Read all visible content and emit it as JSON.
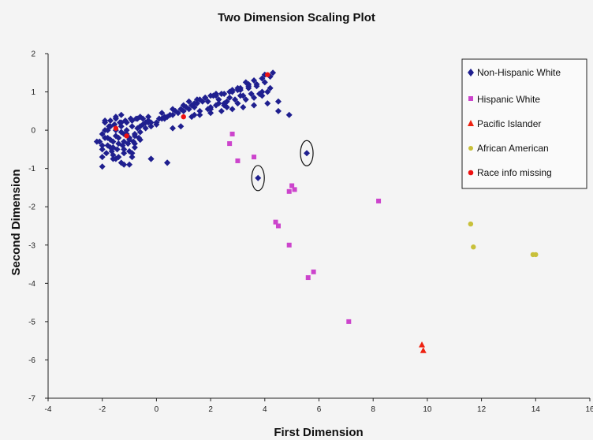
{
  "chart_data": {
    "type": "scatter",
    "title": "Two Dimension Scaling Plot",
    "xlabel": "First Dimension",
    "ylabel": "Second Dimension",
    "xlim": [
      -4,
      16
    ],
    "ylim": [
      -7,
      2
    ],
    "x_ticks": [
      "-4",
      "-2",
      "0",
      "2",
      "4",
      "6",
      "8",
      "10",
      "12",
      "14",
      "16"
    ],
    "y_ticks": [
      "2",
      "1",
      "0",
      "-1",
      "-2",
      "-3",
      "-4",
      "-5",
      "-6",
      "-7"
    ],
    "grid": false,
    "legend_position": "top-right",
    "circled_points": [
      [
        3.75,
        -1.25
      ],
      [
        5.55,
        -0.6
      ]
    ],
    "series": [
      {
        "name": "Non-Hispanic White",
        "marker": "diamond",
        "color": "#1f1f8f",
        "x": [
          -2.1,
          -2.0,
          -1.9,
          -1.8,
          -1.7,
          -1.6,
          -1.5,
          -1.4,
          -1.3,
          -1.2,
          -1.1,
          -1.0,
          -0.9,
          -0.8,
          -0.7,
          -0.6,
          -0.5,
          -0.4,
          -0.3,
          -0.2,
          -2.0,
          -1.8,
          -1.6,
          -1.4,
          -1.2,
          -1.0,
          -0.8,
          -0.6,
          -0.4,
          -0.2,
          0.0,
          -1.9,
          -1.7,
          -1.5,
          -1.3,
          -1.1,
          -0.9,
          -0.7,
          -0.5,
          -0.3,
          -1.85,
          -1.65,
          -1.45,
          -1.25,
          -1.05,
          -0.85,
          -0.65,
          -1.75,
          -1.55,
          -1.35,
          -1.15,
          -0.95,
          -0.75,
          -1.9,
          -1.7,
          -1.5,
          -1.3,
          -1.1,
          -2.0,
          -1.6,
          -1.2,
          -0.8,
          -1.4,
          -1.0,
          -0.6,
          -1.6,
          -1.2,
          -0.8,
          -1.3,
          -0.9,
          -2.2,
          -2.0,
          -1.0,
          -1.8,
          -1.5,
          -0.6,
          -1.9,
          -1.3,
          -0.2,
          0.4,
          -0.3,
          0.0,
          0.2,
          0.4,
          0.6,
          0.8,
          1.0,
          1.2,
          1.4,
          0.1,
          0.3,
          0.5,
          0.7,
          0.9,
          1.1,
          1.3,
          1.5,
          1.7,
          0.2,
          0.6,
          1.0,
          1.4,
          1.6,
          1.8,
          2.0,
          2.2,
          1.2,
          1.5,
          1.8,
          2.1,
          2.4,
          2.7,
          3.0,
          2.3,
          2.6,
          2.9,
          3.2,
          3.5,
          2.0,
          2.5,
          3.0,
          3.3,
          3.6,
          3.9,
          2.8,
          3.1,
          3.4,
          3.7,
          4.0,
          2.2,
          2.5,
          2.8,
          3.1,
          3.4,
          3.7,
          1.9,
          2.3,
          2.7,
          3.1,
          3.5,
          3.9,
          4.2,
          1.6,
          1.9,
          2.2,
          2.5,
          1.3,
          1.6,
          2.0,
          2.4,
          2.8,
          3.2,
          3.6,
          4.1,
          4.5,
          3.3,
          3.6,
          3.9,
          4.2,
          4.0,
          4.3,
          3.8,
          4.1,
          3.0,
          3.4,
          2.6,
          2.0,
          1.4,
          0.9,
          0.6,
          0.3,
          4.9,
          4.5,
          -0.2,
          0.4,
          -1.2,
          -1.5,
          -0.9,
          -1.7,
          -2.0
        ],
        "y": [
          -0.3,
          -0.1,
          0.0,
          -0.2,
          0.1,
          -0.3,
          0.0,
          -0.2,
          0.1,
          -0.1,
          0.0,
          -0.2,
          0.1,
          -0.1,
          0.05,
          0.1,
          0.15,
          0.2,
          0.25,
          0.2,
          -0.5,
          -0.4,
          -0.45,
          -0.35,
          -0.3,
          -0.25,
          -0.15,
          -0.05,
          0.05,
          0.1,
          0.15,
          0.2,
          0.25,
          0.3,
          0.2,
          0.2,
          0.25,
          0.3,
          0.3,
          0.35,
          -0.6,
          -0.55,
          -0.5,
          -0.4,
          -0.35,
          -0.3,
          -0.2,
          0.1,
          0.15,
          0.2,
          0.25,
          0.3,
          0.3,
          -0.2,
          -0.25,
          -0.15,
          -0.05,
          -0.1,
          -0.4,
          -0.65,
          -0.5,
          -0.35,
          -0.7,
          -0.55,
          -0.25,
          -0.75,
          -0.6,
          -0.45,
          -0.85,
          -0.7,
          -0.3,
          -0.95,
          -0.9,
          0.0,
          0.35,
          0.35,
          0.25,
          0.4,
          -0.75,
          -0.85,
          0.2,
          0.2,
          0.3,
          0.35,
          0.4,
          0.45,
          0.5,
          0.55,
          0.6,
          0.3,
          0.35,
          0.4,
          0.5,
          0.55,
          0.6,
          0.65,
          0.7,
          0.75,
          0.45,
          0.55,
          0.65,
          0.7,
          0.8,
          0.85,
          0.9,
          0.95,
          0.75,
          0.8,
          0.85,
          0.9,
          0.95,
          1.0,
          1.05,
          0.7,
          0.75,
          0.8,
          0.9,
          0.95,
          0.6,
          0.65,
          0.7,
          0.8,
          0.85,
          0.9,
          1.05,
          1.1,
          1.15,
          1.2,
          1.25,
          0.9,
          0.95,
          1.0,
          1.05,
          1.1,
          1.15,
          0.75,
          0.8,
          0.85,
          0.9,
          0.95,
          1.0,
          1.1,
          0.5,
          0.55,
          0.65,
          0.7,
          0.35,
          0.4,
          0.45,
          0.5,
          0.55,
          0.6,
          0.65,
          0.7,
          0.75,
          1.25,
          1.3,
          1.35,
          1.4,
          1.45,
          1.5,
          0.95,
          1.0,
          1.1,
          1.2,
          0.6,
          0.55,
          0.4,
          0.1,
          0.05,
          0.3,
          0.4,
          0.5,
          -0.75,
          -0.85,
          -0.9,
          -0.75,
          -0.6,
          -0.45,
          -0.7
        ],
        "outliers": {
          "x": [
            3.75,
            5.55
          ],
          "y": [
            -1.25,
            -0.6
          ]
        }
      },
      {
        "name": "Hispanic White",
        "marker": "square",
        "color": "#cc44cc",
        "x": [
          2.8,
          2.7,
          3.0,
          3.6,
          5.0,
          5.1,
          4.9,
          4.4,
          4.5,
          4.9,
          5.8,
          5.6,
          7.1,
          8.2
        ],
        "y": [
          -0.1,
          -0.35,
          -0.8,
          -0.7,
          -1.45,
          -1.55,
          -1.6,
          -2.4,
          -2.5,
          -3.0,
          -3.7,
          -3.85,
          -5.0,
          -1.85
        ]
      },
      {
        "name": "Pacific Islander",
        "marker": "triangle",
        "color": "#ee2211",
        "x": [
          9.8,
          9.85
        ],
        "y": [
          -5.6,
          -5.75
        ]
      },
      {
        "name": "African American",
        "marker": "circle",
        "color": "#c8c03a",
        "x": [
          11.6,
          11.7,
          13.9,
          14.0
        ],
        "y": [
          -2.45,
          -3.05,
          -3.25,
          -3.25
        ]
      },
      {
        "name": "Race info missing",
        "marker": "circle",
        "color": "#ee1111",
        "x": [
          -1.5,
          -1.1,
          4.1,
          1.0
        ],
        "y": [
          0.05,
          -0.15,
          1.45,
          0.35
        ]
      }
    ]
  },
  "legend": [
    {
      "label": "Non-Hispanic White",
      "marker": "diamond",
      "color": "#1f1f8f"
    },
    {
      "label": "Hispanic White",
      "marker": "square",
      "color": "#cc44cc"
    },
    {
      "label": "Pacific Islander",
      "marker": "triangle",
      "color": "#ee2211"
    },
    {
      "label": "African American",
      "marker": "circle",
      "color": "#c8c03a"
    },
    {
      "label": "Race info missing",
      "marker": "circle",
      "color": "#ee1111"
    }
  ]
}
